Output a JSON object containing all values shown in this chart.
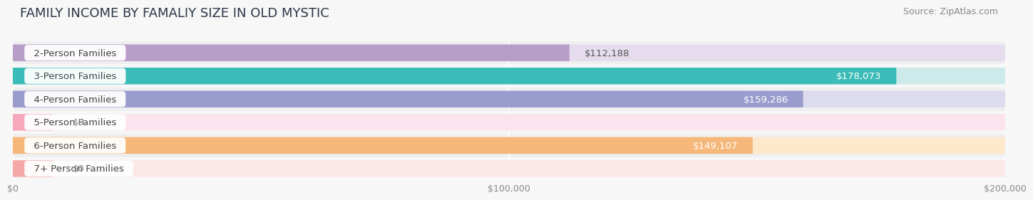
{
  "title": "FAMILY INCOME BY FAMALIY SIZE IN OLD MYSTIC",
  "source": "Source: ZipAtlas.com",
  "categories": [
    "2-Person Families",
    "3-Person Families",
    "4-Person Families",
    "5-Person Families",
    "6-Person Families",
    "7+ Person Families"
  ],
  "values": [
    112188,
    178073,
    159286,
    0,
    149107,
    0
  ],
  "bar_colors": [
    "#b99dc9",
    "#3bbcb8",
    "#9b9cce",
    "#f7a8bc",
    "#f5b87a",
    "#f5a8a8"
  ],
  "bar_bg_colors": [
    "#e5dced",
    "#cceaea",
    "#dcdcee",
    "#fce4ee",
    "#fde8cc",
    "#fce8e8"
  ],
  "value_labels": [
    "$112,188",
    "$178,073",
    "$159,286",
    "$0",
    "$149,107",
    "$0"
  ],
  "value_inside": [
    false,
    true,
    true,
    false,
    true,
    false
  ],
  "x_max": 200000,
  "x_ticks": [
    0,
    100000,
    200000
  ],
  "x_tick_labels": [
    "$0",
    "$100,000",
    "$200,000"
  ],
  "background_color": "#f7f7f7",
  "title_fontsize": 13,
  "source_fontsize": 9,
  "label_fontsize": 9.5,
  "value_fontsize": 9.5
}
